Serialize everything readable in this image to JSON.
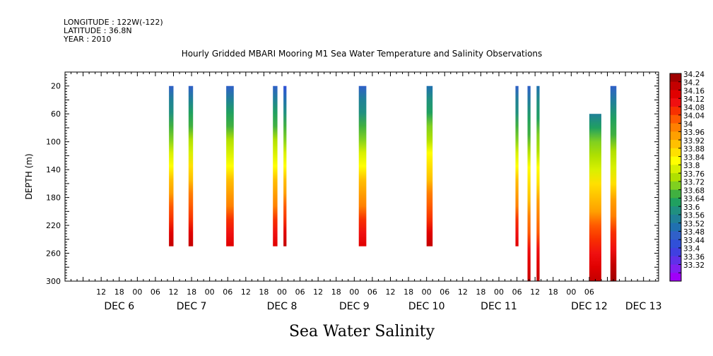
{
  "header": {
    "longitude": "LONGITUDE : 122W(-122)",
    "latitude": "LATITUDE : 36.8N",
    "year": "YEAR : 2010"
  },
  "chart_data": {
    "type": "heatmap",
    "title": "Hourly Gridded MBARI Mooring M1 Sea Water Temperature and Salinity Observations",
    "bottom_label": "Sea Water Salinity",
    "ylabel": "DEPTH (m)",
    "ylim": [
      300,
      0
    ],
    "y_ticks": [
      20,
      60,
      100,
      140,
      180,
      220,
      260,
      300
    ],
    "x_hour_ticks": [
      "12",
      "18",
      "00",
      "06",
      "12",
      "18",
      "00",
      "06",
      "12",
      "18",
      "00",
      "06",
      "12",
      "18",
      "00",
      "06",
      "12",
      "18",
      "00",
      "06",
      "12",
      "18",
      "00",
      "06",
      "12",
      "18",
      "00",
      "06"
    ],
    "x_hour_tick_hours": [
      12,
      18,
      24,
      30,
      36,
      42,
      48,
      54,
      60,
      66,
      72,
      78,
      84,
      90,
      96,
      102,
      108,
      114,
      120,
      126,
      132,
      138,
      144,
      150,
      156,
      162,
      168,
      174
    ],
    "x_day_labels": [
      "DEC  6",
      "DEC  7",
      "DEC  8",
      "DEC  9",
      "DEC 10",
      "DEC 11",
      "DEC 12",
      "DEC 13"
    ],
    "x_day_label_hours": [
      18,
      42,
      72,
      96,
      120,
      144,
      174,
      192
    ],
    "xlim_hours": [
      0,
      197
    ],
    "x_origin": "2010-12-06T00:00",
    "colorbar": {
      "labels": [
        "34.24",
        "34.2",
        "34.16",
        "34.12",
        "34.08",
        "34.04",
        "34",
        "33.96",
        "33.92",
        "33.88",
        "33.84",
        "33.8",
        "33.76",
        "33.72",
        "33.68",
        "33.64",
        "33.6",
        "33.56",
        "33.52",
        "33.48",
        "33.44",
        "33.4",
        "33.36",
        "33.32"
      ],
      "colors": [
        "#a00000",
        "#c40000",
        "#e00000",
        "#f01010",
        "#f83000",
        "#ff5a00",
        "#ff8000",
        "#ffa000",
        "#ffc000",
        "#ffe000",
        "#ffff00",
        "#d8f000",
        "#b0e000",
        "#80d020",
        "#40b040",
        "#20a060",
        "#209080",
        "#208098",
        "#2070b0",
        "#3060c8",
        "#3050d8",
        "#4040e0",
        "#6030e8",
        "#8020f0",
        "#a000f8"
      ]
    },
    "columns": [
      {
        "start_hour": 34.5,
        "end_hour": 36,
        "top_depth": 20,
        "bottom_depth": 250,
        "salinity_top": 33.5,
        "salinity_bottom": 34.2
      },
      {
        "start_hour": 41,
        "end_hour": 42.5,
        "top_depth": 20,
        "bottom_depth": 250,
        "salinity_top": 33.52,
        "salinity_bottom": 34.2
      },
      {
        "start_hour": 53.5,
        "end_hour": 56,
        "top_depth": 20,
        "bottom_depth": 250,
        "salinity_top": 33.52,
        "salinity_bottom": 34.18
      },
      {
        "start_hour": 69,
        "end_hour": 70.5,
        "top_depth": 20,
        "bottom_depth": 250,
        "salinity_top": 33.52,
        "salinity_bottom": 34.18
      },
      {
        "start_hour": 72.5,
        "end_hour": 73.5,
        "top_depth": 20,
        "bottom_depth": 250,
        "salinity_top": 33.48,
        "salinity_bottom": 34.2
      },
      {
        "start_hour": 97.5,
        "end_hour": 100,
        "top_depth": 20,
        "bottom_depth": 250,
        "salinity_top": 33.5,
        "salinity_bottom": 34.18
      },
      {
        "start_hour": 120,
        "end_hour": 122,
        "top_depth": 20,
        "bottom_depth": 250,
        "salinity_top": 33.54,
        "salinity_bottom": 34.2
      },
      {
        "start_hour": 149.5,
        "end_hour": 150.5,
        "top_depth": 20,
        "bottom_depth": 250,
        "salinity_top": 33.5,
        "salinity_bottom": 34.18
      },
      {
        "start_hour": 153.5,
        "end_hour": 154.5,
        "top_depth": 20,
        "bottom_depth": 300,
        "salinity_top": 33.52,
        "salinity_bottom": 34.22
      },
      {
        "start_hour": 156.5,
        "end_hour": 157.5,
        "top_depth": 20,
        "bottom_depth": 300,
        "salinity_top": 33.54,
        "salinity_bottom": 34.22
      },
      {
        "start_hour": 174,
        "end_hour": 178,
        "top_depth": 60,
        "bottom_depth": 300,
        "salinity_top": 33.6,
        "salinity_bottom": 34.22
      },
      {
        "start_hour": 181,
        "end_hour": 183,
        "top_depth": 20,
        "bottom_depth": 300,
        "salinity_top": 33.5,
        "salinity_bottom": 34.24
      }
    ]
  }
}
